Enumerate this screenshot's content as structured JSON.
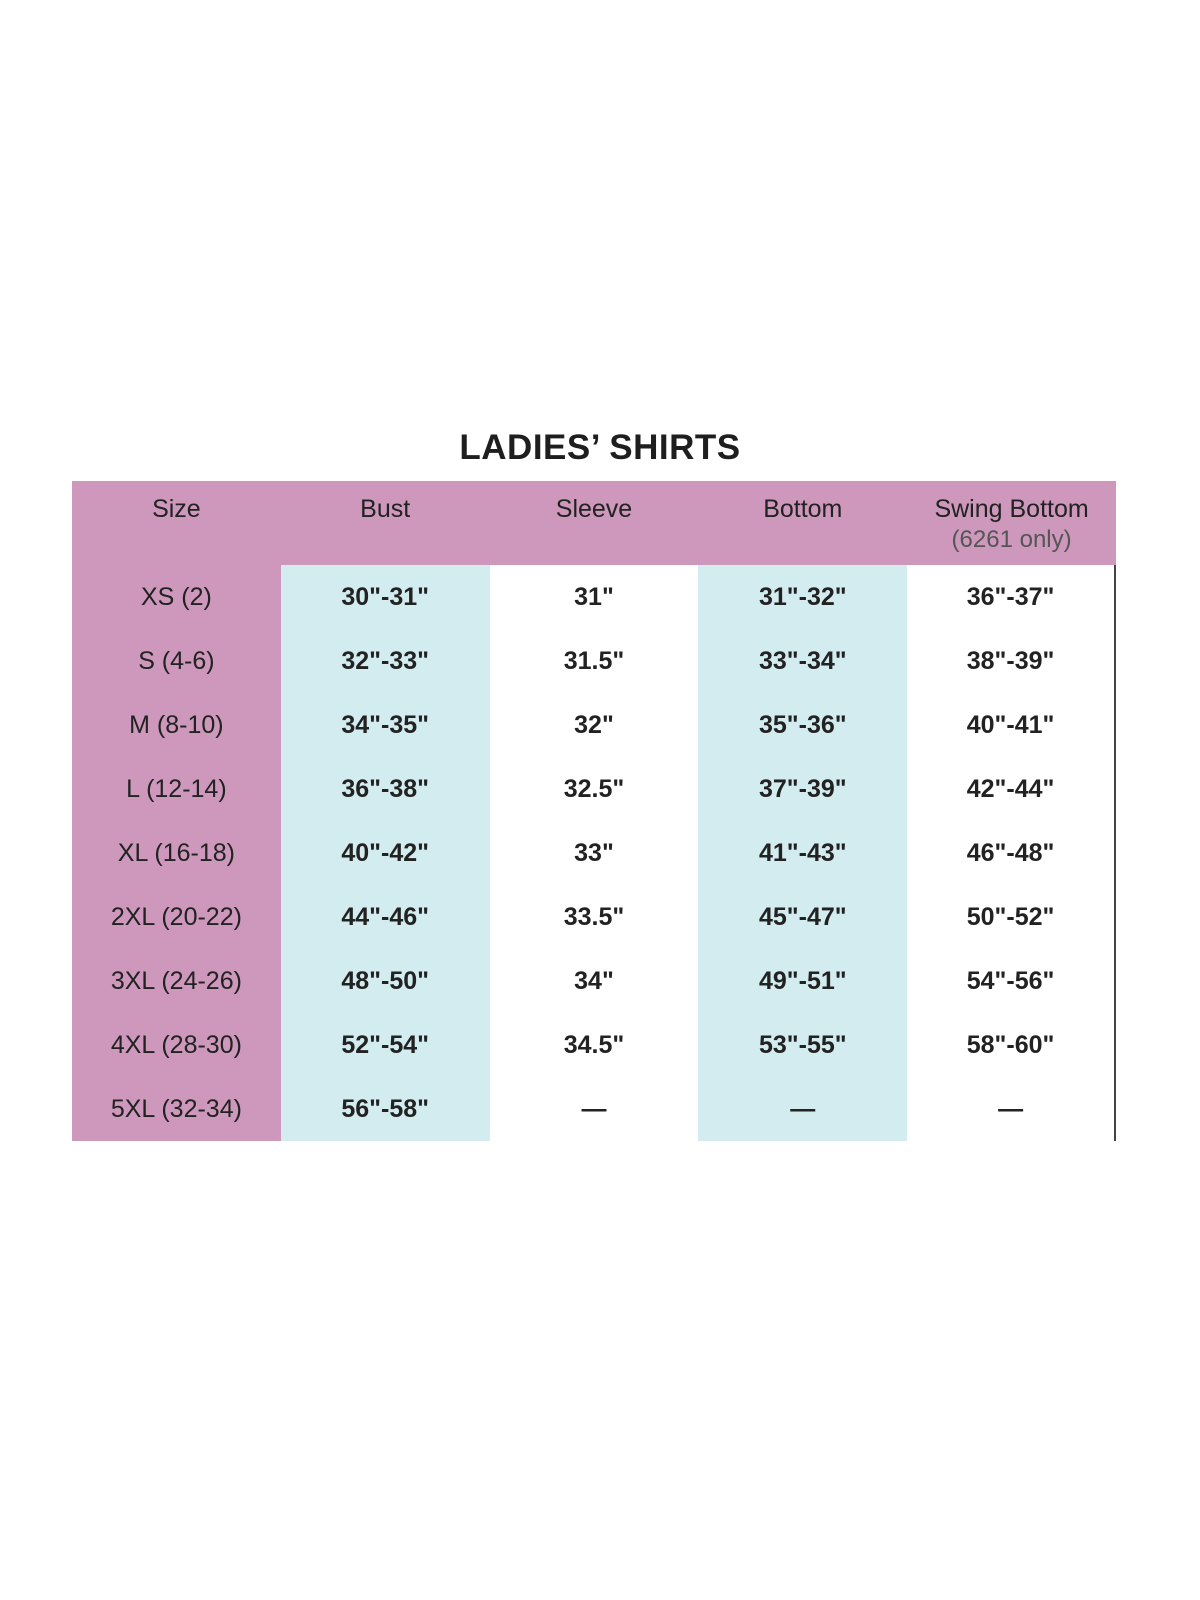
{
  "title": "LADIES’ SHIRTS",
  "colors": {
    "header": "#cd98bb",
    "highlight_column": "#d2ecf0"
  },
  "headers": [
    {
      "label": "Size",
      "sub": ""
    },
    {
      "label": "Bust",
      "sub": ""
    },
    {
      "label": "Sleeve",
      "sub": ""
    },
    {
      "label": "Bottom",
      "sub": ""
    },
    {
      "label": "Swing Bottom",
      "sub": "(6261 only)"
    }
  ],
  "rows": [
    [
      "XS (2)",
      "30\"-31\"",
      "31\"",
      "31\"-32\"",
      "36\"-37\""
    ],
    [
      "S (4-6)",
      "32\"-33\"",
      "31.5\"",
      "33\"-34\"",
      "38\"-39\""
    ],
    [
      "M (8-10)",
      "34\"-35\"",
      "32\"",
      "35\"-36\"",
      "40\"-41\""
    ],
    [
      "L (12-14)",
      "36\"-38\"",
      "32.5\"",
      "37\"-39\"",
      "42\"-44\""
    ],
    [
      "XL (16-18)",
      "40\"-42\"",
      "33\"",
      "41\"-43\"",
      "46\"-48\""
    ],
    [
      "2XL (20-22)",
      "44\"-46\"",
      "33.5\"",
      "45\"-47\"",
      "50\"-52\""
    ],
    [
      "3XL (24-26)",
      "48\"-50\"",
      "34\"",
      "49\"-51\"",
      "54\"-56\""
    ],
    [
      "4XL (28-30)",
      "52\"-54\"",
      "34.5\"",
      "53\"-55\"",
      "58\"-60\""
    ],
    [
      "5XL (32-34)",
      "56\"-58\"",
      "—",
      "—",
      "—"
    ]
  ]
}
